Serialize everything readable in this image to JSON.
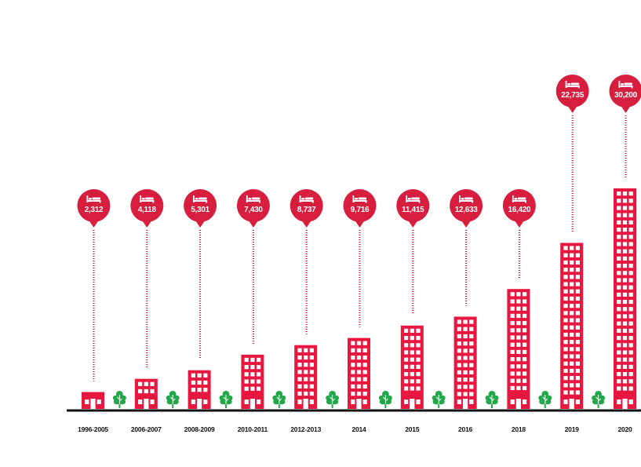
{
  "chart_data": {
    "type": "bar",
    "title": "",
    "xlabel": "",
    "ylabel": "",
    "categories": [
      "1996-2005",
      "2006-2007",
      "2008-2009",
      "2010-2011",
      "2012-2013",
      "2014",
      "2015",
      "2016",
      "2018",
      "2019",
      "2020"
    ],
    "series": [
      {
        "name": "Hotel rooms",
        "values": [
          2312,
          4118,
          5301,
          7430,
          8737,
          9716,
          11415,
          12633,
          16420,
          22735,
          30200
        ]
      }
    ],
    "value_labels": [
      "2,312",
      "4,118",
      "5,301",
      "7,430",
      "8,737",
      "9,716",
      "11,415",
      "12,633",
      "16,420",
      "22,735",
      "30,200"
    ],
    "ylim": [
      0,
      30200
    ],
    "grid": false,
    "legend": "none"
  },
  "icons": {
    "marker": "bed-icon",
    "bar": "building-icon",
    "separator": "tree-icon"
  },
  "colors": {
    "bar": "#e8173f",
    "bubble": "#d81e3f",
    "window": "#ffffff",
    "tree": "#22a84a",
    "axis": "#111111",
    "leader": "#c8102e"
  }
}
